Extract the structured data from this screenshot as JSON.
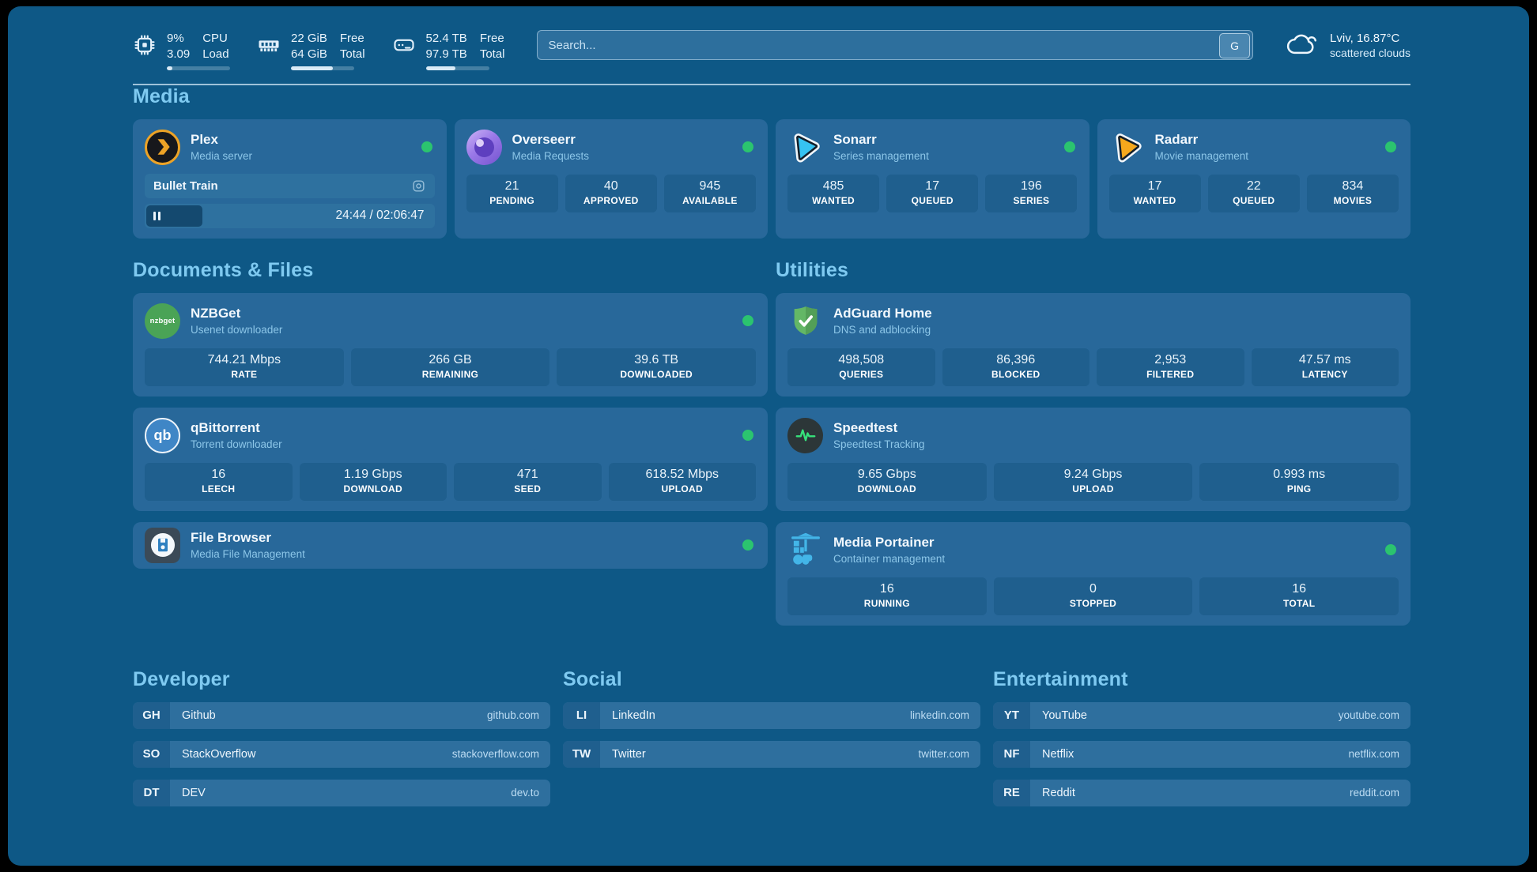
{
  "colors": {
    "page_bg": "#0e5886",
    "card_bg": "#28689a",
    "tile_bg": "#1f5f8e",
    "heading_text": "#7fcaf1",
    "status_online_green": "#2bc46f",
    "plex_orange": "#eda326",
    "portainer_blue": "#43b5e8"
  },
  "header": {
    "system_stats": [
      {
        "icon": "cpu-icon",
        "values": [
          "9%",
          "3.09"
        ],
        "labels": [
          "CPU",
          "Load"
        ],
        "progress_pct": 9
      },
      {
        "icon": "memory-icon",
        "values": [
          "22 GiB",
          "64 GiB"
        ],
        "labels": [
          "Free",
          "Total"
        ],
        "progress_pct": 66
      },
      {
        "icon": "disk-icon",
        "values": [
          "52.4 TB",
          "97.9 TB"
        ],
        "labels": [
          "Free",
          "Total"
        ],
        "progress_pct": 47
      }
    ],
    "search": {
      "placeholder": "Search...",
      "engine_button": "G"
    },
    "weather": {
      "icon": "cloud-icon",
      "location_temp": "Lviv, 16.87°C",
      "condition": "scattered clouds"
    }
  },
  "sections": {
    "media": "Media",
    "documents": "Documents & Files",
    "utilities": "Utilities",
    "developer": "Developer",
    "social": "Social",
    "entertainment": "Entertainment"
  },
  "apps": {
    "plex": {
      "name": "Plex",
      "desc": "Media server",
      "status": "online",
      "now_playing": "Bullet Train",
      "elapsed_total": "24:44 / 02:06:47",
      "progress_pct": 19.5
    },
    "overseerr": {
      "name": "Overseerr",
      "desc": "Media Requests",
      "status": "online",
      "stats": [
        {
          "value": "21",
          "label": "PENDING"
        },
        {
          "value": "40",
          "label": "APPROVED"
        },
        {
          "value": "945",
          "label": "AVAILABLE"
        }
      ]
    },
    "sonarr": {
      "name": "Sonarr",
      "desc": "Series management",
      "status": "online",
      "stats": [
        {
          "value": "485",
          "label": "WANTED"
        },
        {
          "value": "17",
          "label": "QUEUED"
        },
        {
          "value": "196",
          "label": "SERIES"
        }
      ]
    },
    "radarr": {
      "name": "Radarr",
      "desc": "Movie management",
      "status": "online",
      "stats": [
        {
          "value": "17",
          "label": "WANTED"
        },
        {
          "value": "22",
          "label": "QUEUED"
        },
        {
          "value": "834",
          "label": "MOVIES"
        }
      ]
    },
    "nzbget": {
      "name": "NZBGet",
      "desc": "Usenet downloader",
      "status": "online",
      "icon_text": "nzbget",
      "stats": [
        {
          "value": "744.21 Mbps",
          "label": "RATE"
        },
        {
          "value": "266 GB",
          "label": "REMAINING"
        },
        {
          "value": "39.6 TB",
          "label": "DOWNLOADED"
        }
      ]
    },
    "adguard": {
      "name": "AdGuard Home",
      "desc": "DNS and adblocking",
      "stats": [
        {
          "value": "498,508",
          "label": "QUERIES"
        },
        {
          "value": "86,396",
          "label": "BLOCKED"
        },
        {
          "value": "2,953",
          "label": "FILTERED"
        },
        {
          "value": "47.57 ms",
          "label": "LATENCY"
        }
      ]
    },
    "qbittorrent": {
      "name": "qBittorrent",
      "desc": "Torrent downloader",
      "status": "online",
      "icon_text": "qb",
      "stats": [
        {
          "value": "16",
          "label": "LEECH"
        },
        {
          "value": "1.19 Gbps",
          "label": "DOWNLOAD"
        },
        {
          "value": "471",
          "label": "SEED"
        },
        {
          "value": "618.52 Mbps",
          "label": "UPLOAD"
        }
      ]
    },
    "speedtest": {
      "name": "Speedtest",
      "desc": "Speedtest Tracking",
      "stats": [
        {
          "value": "9.65 Gbps",
          "label": "DOWNLOAD"
        },
        {
          "value": "9.24 Gbps",
          "label": "UPLOAD"
        },
        {
          "value": "0.993 ms",
          "label": "PING"
        }
      ]
    },
    "filebrowser": {
      "name": "File Browser",
      "desc": "Media File Management",
      "status": "online"
    },
    "portainer": {
      "name": "Media Portainer",
      "desc": "Container management",
      "status": "online",
      "stats": [
        {
          "value": "16",
          "label": "RUNNING"
        },
        {
          "value": "0",
          "label": "STOPPED"
        },
        {
          "value": "16",
          "label": "TOTAL"
        }
      ]
    }
  },
  "bookmarks": {
    "developer": [
      {
        "abbr": "GH",
        "name": "Github",
        "url": "github.com"
      },
      {
        "abbr": "SO",
        "name": "StackOverflow",
        "url": "stackoverflow.com"
      },
      {
        "abbr": "DT",
        "name": "DEV",
        "url": "dev.to"
      }
    ],
    "social": [
      {
        "abbr": "LI",
        "name": "LinkedIn",
        "url": "linkedin.com"
      },
      {
        "abbr": "TW",
        "name": "Twitter",
        "url": "twitter.com"
      }
    ],
    "entertainment": [
      {
        "abbr": "YT",
        "name": "YouTube",
        "url": "youtube.com"
      },
      {
        "abbr": "NF",
        "name": "Netflix",
        "url": "netflix.com"
      },
      {
        "abbr": "RE",
        "name": "Reddit",
        "url": "reddit.com"
      }
    ]
  }
}
